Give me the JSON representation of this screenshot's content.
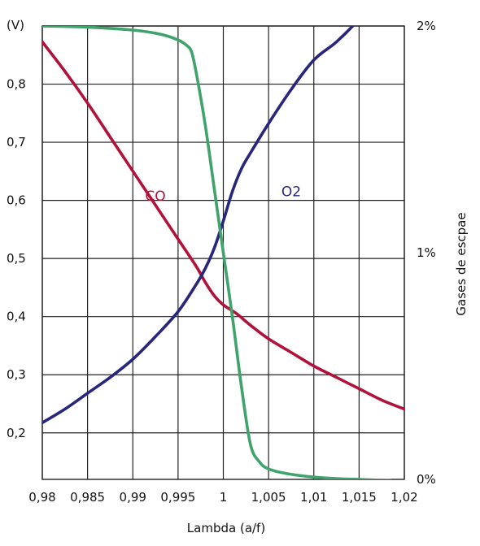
{
  "chart_data": {
    "type": "line",
    "xlabel": "Lambda (a/f)",
    "ylabel_left_unit": "(V)",
    "ylabel_right": "Gases de escpae",
    "x_ticks": [
      "0,98",
      "0,985",
      "0,99",
      "0,995",
      "1",
      "1,005",
      "1,01",
      "1,015",
      "1,02"
    ],
    "y_left_ticks": [
      "0,2",
      "0,3",
      "0,4",
      "0,5",
      "0,6",
      "0,7",
      "0,8"
    ],
    "y_right_ticks": [
      "0%",
      "1%",
      "2%"
    ],
    "xlim": [
      0.98,
      1.02
    ],
    "ylim_left": [
      0.12,
      0.9
    ],
    "ylim_right": [
      0,
      2
    ],
    "grid": true,
    "series": [
      {
        "name": "CO",
        "color": "#b0123a",
        "axis": "right",
        "label_at": [
          0.9925,
          1.23
        ],
        "x": [
          0.98,
          0.9825,
          0.985,
          0.9875,
          0.99,
          0.9925,
          0.995,
          0.997,
          0.998,
          0.999,
          1.0,
          1.0015,
          1.003,
          1.005,
          1.0075,
          1.01,
          1.0125,
          1.015,
          1.0175,
          1.02
        ],
        "y": [
          1.93,
          1.8,
          1.66,
          1.51,
          1.36,
          1.21,
          1.06,
          0.94,
          0.87,
          0.81,
          0.77,
          0.73,
          0.68,
          0.62,
          0.56,
          0.5,
          0.45,
          0.4,
          0.35,
          0.31
        ]
      },
      {
        "name": "O2",
        "color": "#27267a",
        "axis": "right",
        "label_at": [
          1.0075,
          1.25
        ],
        "x": [
          0.98,
          0.9825,
          0.985,
          0.9875,
          0.99,
          0.9925,
          0.995,
          0.997,
          0.998,
          0.999,
          1.0,
          1.001,
          1.002,
          1.003,
          1.005,
          1.0075,
          1.01,
          1.0125,
          1.015,
          1.0175,
          1.02
        ],
        "y": [
          0.25,
          0.31,
          0.38,
          0.45,
          0.53,
          0.63,
          0.74,
          0.86,
          0.93,
          1.02,
          1.14,
          1.27,
          1.37,
          1.44,
          1.57,
          1.72,
          1.85,
          1.93,
          2.03,
          2.15,
          2.25
        ]
      },
      {
        "name": "",
        "color": "#3fa36b",
        "axis": "left",
        "x": [
          0.98,
          0.985,
          0.99,
          0.993,
          0.995,
          0.996,
          0.9965,
          0.997,
          0.998,
          0.999,
          1.0,
          1.001,
          1.002,
          1.003,
          1.004,
          1.005,
          1.007,
          1.01,
          1.013,
          1.015,
          1.0185
        ],
        "y": [
          0.9,
          0.898,
          0.893,
          0.886,
          0.876,
          0.866,
          0.855,
          0.82,
          0.73,
          0.62,
          0.51,
          0.4,
          0.28,
          0.18,
          0.15,
          0.138,
          0.13,
          0.124,
          0.121,
          0.12,
          0.118
        ]
      }
    ]
  }
}
